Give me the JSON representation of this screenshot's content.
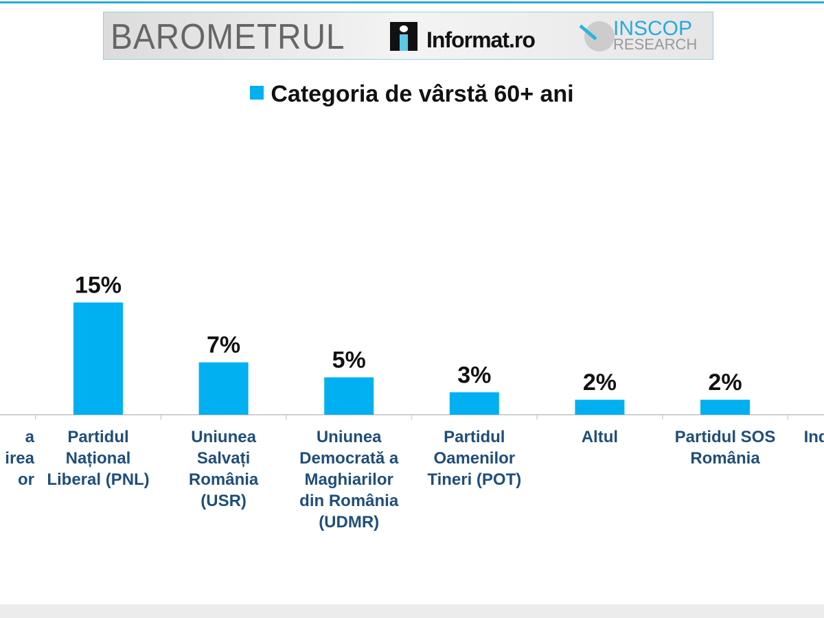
{
  "header": {
    "title": "BAROMETRUL",
    "partner1": "Informat.ro",
    "partner2_line1": "INSCOP",
    "partner2_line2": "RESEARCH"
  },
  "colors": {
    "bar": "#00b0f0",
    "label": "#1f4e79",
    "accent": "#29a9d8"
  },
  "chart_data": {
    "type": "bar",
    "title": "",
    "legend": {
      "entries": [
        "Categoria de vârstă 60+ ani"
      ],
      "placement": "top"
    },
    "categories": [
      "…a\n…irea\n…or",
      "Partidul Național Liberal (PNL)",
      "Uniunea Salvați România (USR)",
      "Uniunea Democrată a Maghiarilor din România (UDMR)",
      "Partidul Oamenilor Tineri (POT)",
      "Altul",
      "Partidul SOS România",
      "Ind…"
    ],
    "category_lines": [
      "a\nirea\nor",
      "Partidul\nNațional\nLiberal (PNL)",
      "Uniunea\nSalvați\nRomânia\n(USR)",
      "Uniunea\nDemocrată a\nMaghiarilor\ndin România\n(UDMR)",
      "Partidul\nOamenilor\nTineri (POT)",
      "Altul",
      "Partidul SOS\nRomânia",
      "Ind"
    ],
    "series": [
      {
        "name": "Categoria de vârstă 60+ ani",
        "values": [
          null,
          15,
          7,
          5,
          3,
          2,
          2,
          null
        ]
      }
    ],
    "data_labels": [
      "",
      "15%",
      "7%",
      "5%",
      "3%",
      "2%",
      "2%",
      ""
    ],
    "ylim": [
      0,
      20
    ],
    "grid": false
  }
}
